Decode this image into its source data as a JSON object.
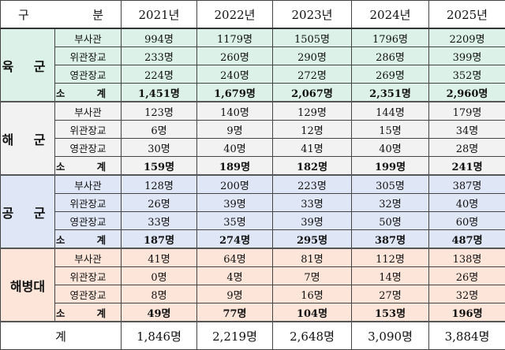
{
  "header": {
    "label_left": "구",
    "label_right": "분",
    "years": [
      "2021년",
      "2022년",
      "2023년",
      "2024년",
      "2025년"
    ]
  },
  "groups": [
    {
      "name": "육 군",
      "color": "#dcf2e8",
      "rows": [
        {
          "label": "부사관",
          "values": [
            "994명",
            "1179명",
            "1505명",
            "1796명",
            "2209명"
          ]
        },
        {
          "label": "위관장교",
          "values": [
            "233명",
            "260명",
            "290명",
            "286명",
            "399명"
          ]
        },
        {
          "label": "영관장교",
          "values": [
            "224명",
            "240명",
            "272명",
            "269명",
            "352명"
          ]
        },
        {
          "label": "소 계",
          "values": [
            "1,451명",
            "1,679명",
            "2,067명",
            "2,351명",
            "2,960명"
          ]
        }
      ]
    },
    {
      "name": "해 군",
      "color": "#f2f2f2",
      "rows": [
        {
          "label": "부사관",
          "values": [
            "123명",
            "140명",
            "129명",
            "144명",
            "179명"
          ]
        },
        {
          "label": "위관장교",
          "values": [
            "6명",
            "9명",
            "12명",
            "15명",
            "34명"
          ]
        },
        {
          "label": "영관장교",
          "values": [
            "30명",
            "40명",
            "41명",
            "40명",
            "28명"
          ]
        },
        {
          "label": "소 계",
          "values": [
            "159명",
            "189명",
            "182명",
            "199명",
            "241명"
          ]
        }
      ]
    },
    {
      "name": "공 군",
      "color": "#dfe6f6",
      "rows": [
        {
          "label": "부사관",
          "values": [
            "128명",
            "200명",
            "223명",
            "305명",
            "387명"
          ]
        },
        {
          "label": "위관장교",
          "values": [
            "26명",
            "39명",
            "33명",
            "32명",
            "40명"
          ]
        },
        {
          "label": "영관장교",
          "values": [
            "33명",
            "35명",
            "39명",
            "50명",
            "60명"
          ]
        },
        {
          "label": "소 계",
          "values": [
            "187명",
            "274명",
            "295명",
            "387명",
            "487명"
          ]
        }
      ]
    },
    {
      "name": "해병대",
      "color": "#fde6d9",
      "rows": [
        {
          "label": "부사관",
          "values": [
            "41명",
            "64명",
            "81명",
            "112명",
            "138명"
          ]
        },
        {
          "label": "위관장교",
          "values": [
            "0명",
            "4명",
            "7명",
            "14명",
            "26명"
          ]
        },
        {
          "label": "영관장교",
          "values": [
            "8명",
            "9명",
            "16명",
            "27명",
            "32명"
          ]
        },
        {
          "label": "소 계",
          "values": [
            "49명",
            "77명",
            "104명",
            "153명",
            "196명"
          ]
        }
      ]
    }
  ],
  "total": {
    "label": "계",
    "values": [
      "1,846명",
      "2,219명",
      "2,648명",
      "3,090명",
      "3,884명"
    ]
  }
}
